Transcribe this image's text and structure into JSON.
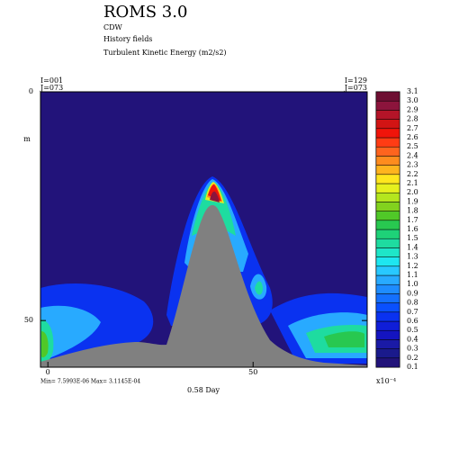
{
  "chart_data": {
    "type": "contour",
    "title": "ROMS 3.0",
    "subtitle": "CDW",
    "annotations": [
      "History fields",
      "Turbulent Kinetic Energy (m2/s2)"
    ],
    "corner_labels": {
      "left": [
        "I=001",
        "J=073"
      ],
      "right": [
        "I=129",
        "J=073"
      ]
    },
    "x_label": "0.58 Day",
    "y_label": "m",
    "range_text": "Min= 7.5993E-06  Max= 3.1145E-04",
    "colorbar_scale": "x10⁻⁴",
    "xlim": [
      -1.8,
      77.8
    ],
    "xticks": [
      0,
      50
    ],
    "ylim": [
      60.2,
      0
    ],
    "yticks": [
      0,
      50
    ],
    "levels": [
      0.1,
      0.2,
      0.3,
      0.4,
      0.5,
      0.6,
      0.7,
      0.8,
      0.9,
      {
        "value": 1,
        "label": "1.0"
      },
      1.1,
      1.2,
      1.3,
      1.4,
      1.5,
      1.6,
      1.7,
      1.8,
      1.9,
      {
        "value": 2,
        "label": "2.0"
      },
      2.1,
      2.2,
      2.3,
      2.4,
      2.5,
      2.6,
      2.7,
      2.8,
      2.9,
      {
        "value": 3,
        "label": "3.0"
      },
      3.1
    ],
    "colors": [
      "#22137a",
      "#1a1a8c",
      "#1a1aa6",
      "#1414c0",
      "#0f1ed8",
      "#0a32f0",
      "#0a50ff",
      "#1470ff",
      "#1e8cff",
      "#28aaff",
      "#28c8ff",
      "#1ee6f0",
      "#1ee6c8",
      "#1edca0",
      "#1ed278",
      "#28c850",
      "#50c828",
      "#82d21e",
      "#b4e61e",
      "#e6f01e",
      "#ffe61e",
      "#ffb41e",
      "#ff8c1e",
      "#ff641e",
      "#ff3c14",
      "#f0140a",
      "#d21414",
      "#b41428",
      "#8c143c",
      "#6e0f32"
    ]
  }
}
